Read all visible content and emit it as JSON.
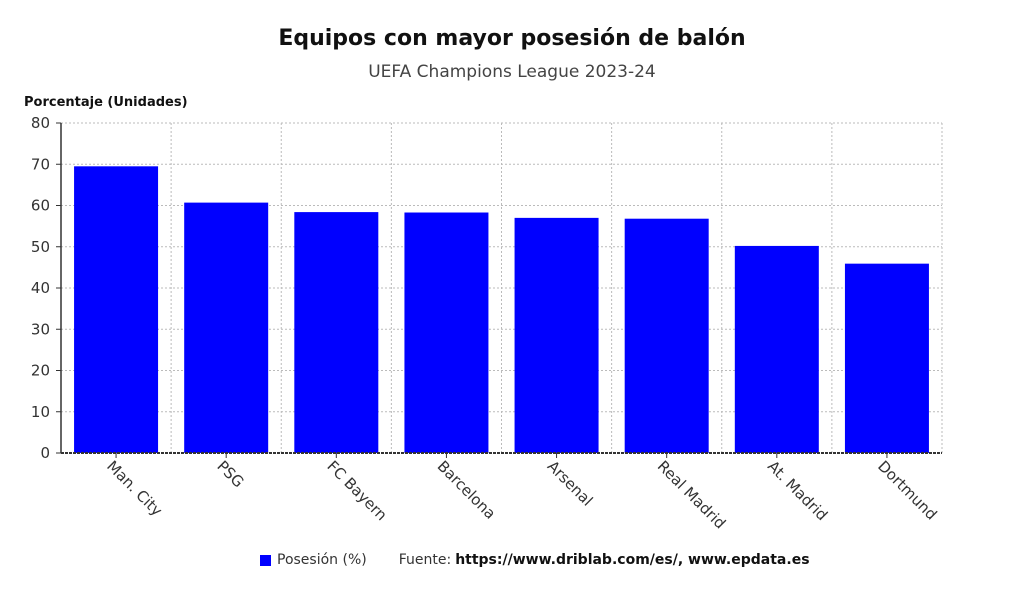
{
  "chart_data": {
    "type": "bar",
    "title": "Equipos con mayor posesión de balón",
    "subtitle": "UEFA Champions League 2023-24",
    "ylabel": "Porcentaje (Unidades)",
    "xlabel": "",
    "categories": [
      "Man. City",
      "PSG",
      "FC Bayern",
      "Barcelona",
      "Arsenal",
      "Real Madrid",
      "At. Madrid",
      "Dortmund"
    ],
    "series": [
      {
        "name": "Posesión (%)",
        "color": "#0000ff",
        "values": [
          69.5,
          60.7,
          58.4,
          58.3,
          57.0,
          56.8,
          50.2,
          45.9
        ]
      }
    ],
    "ylim": [
      0,
      80
    ],
    "yticks": [
      "0",
      "10",
      "20",
      "30",
      "40",
      "50",
      "60",
      "70",
      "80"
    ],
    "grid": true,
    "legend_position": "bottom"
  },
  "source": {
    "prefix": "Fuente:",
    "text": "https://www.driblab.com/es/, www.epdata.es"
  }
}
